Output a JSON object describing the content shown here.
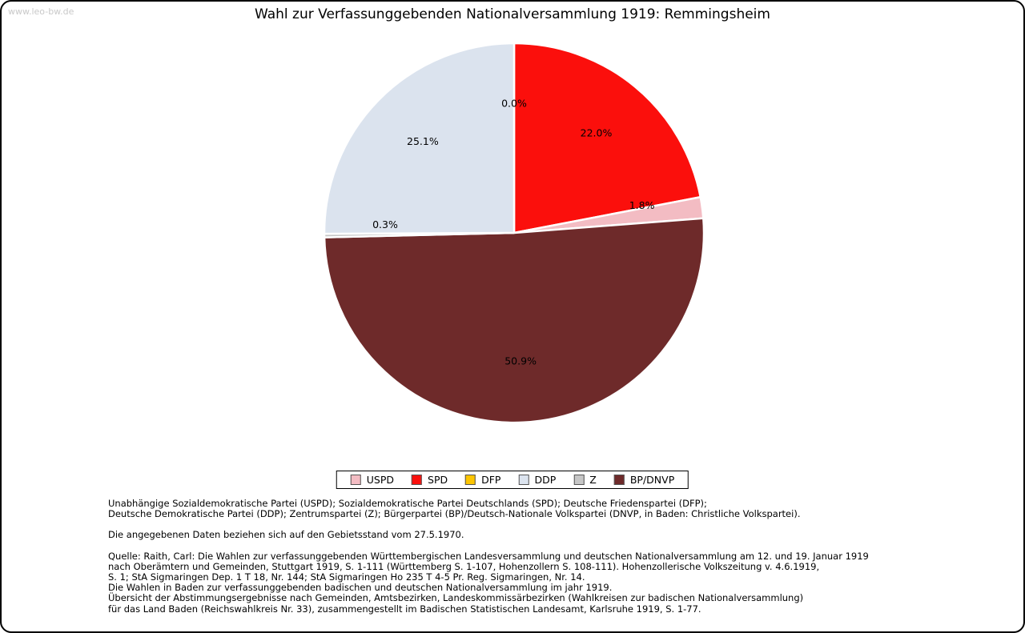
{
  "page": {
    "watermark": "www.leo-bw.de",
    "title": "Wahl zur Verfassunggebenden Nationalversammlung 1919: Remmingsheim"
  },
  "chart_data": {
    "type": "pie",
    "title": "Wahl zur Verfassunggebenden Nationalversammlung 1919: Remmingsheim",
    "unit": "percent",
    "start_angle_deg": 90,
    "direction": "clockwise",
    "slices": [
      {
        "label": "DFP",
        "value": 0.0,
        "display": "0.0%",
        "color": "#fdc500"
      },
      {
        "label": "SPD",
        "value": 22.0,
        "display": "22.0%",
        "color": "#fb0f0c"
      },
      {
        "label": "USPD",
        "value": 1.8,
        "display": "1.8%",
        "color": "#f3bcc3"
      },
      {
        "label": "BP/DNVP",
        "value": 50.9,
        "display": "50.9%",
        "color": "#6e2a2a"
      },
      {
        "label": "Z",
        "value": 0.3,
        "display": "0.3%",
        "color": "#c6c6c6"
      },
      {
        "label": "DDP",
        "value": 25.1,
        "display": "25.1%",
        "color": "#dbe3ee"
      }
    ],
    "legend": [
      "USPD",
      "SPD",
      "DFP",
      "DDP",
      "Z",
      "BP/DNVP"
    ],
    "legend_position": "bottom"
  },
  "footer": {
    "abbreviations": [
      "Unabhängige Sozialdemokratische Partei (USPD); Sozialdemokratische Partei Deutschlands (SPD); Deutsche Friedenspartei (DFP);",
      "Deutsche Demokratische Partei (DDP); Zentrumspartei (Z); Bürgerpartei (BP)/Deutsch-Nationale Volkspartei (DNVP, in Baden: Christliche Volkspartei)."
    ],
    "note": [
      "Die angegebenen Daten beziehen sich auf den Gebietsstand vom 27.5.1970."
    ],
    "source": [
      "Quelle: Raith, Carl: Die Wahlen zur verfassunggebenden Württembergischen Landesversammlung und deutschen Nationalversammlung am 12. und 19. Januar 1919",
      "nach Oberämtern und Gemeinden, Stuttgart 1919, S. 1-111 (Württemberg S. 1-107, Hohenzollern S. 108-111). Hohenzollerische Volkszeitung v. 4.6.1919,",
      "S. 1; StA Sigmaringen Dep. 1 T 18, Nr. 144; StA Sigmaringen Ho 235 T 4-5 Pr. Reg. Sigmaringen, Nr. 14.",
      "Die Wahlen in Baden zur verfassunggebenden badischen und deutschen Nationalversammlung im jahr 1919.",
      "Übersicht der Abstimmungsergebnisse nach Gemeinden, Amtsbezirken, Landeskommissärbezirken (Wahlkreisen zur badischen Nationalversammlung)",
      "für das Land Baden (Reichswahlkreis Nr. 33), zusammengestellt im Badischen Statistischen Landesamt, Karlsruhe 1919, S. 1-77."
    ]
  }
}
